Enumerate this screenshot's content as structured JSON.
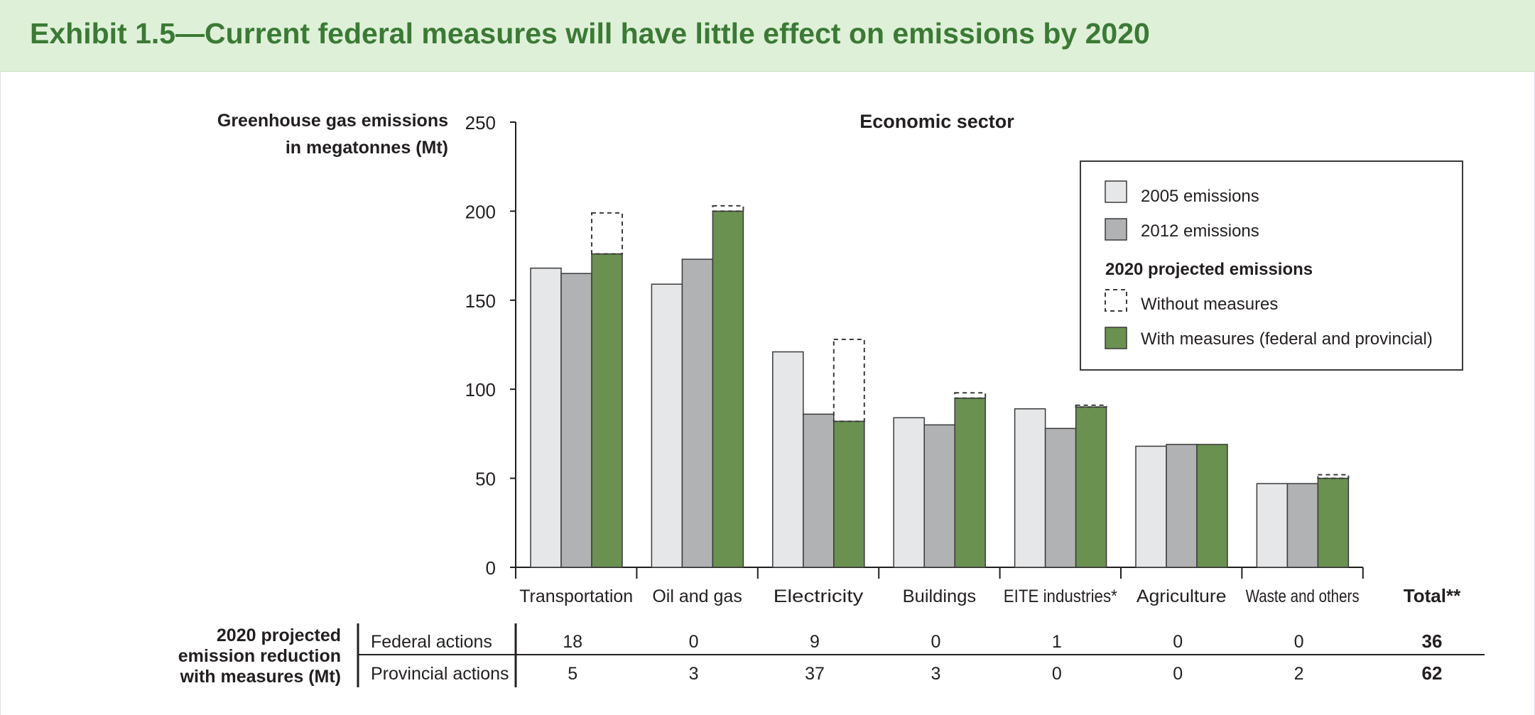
{
  "header": {
    "title": "Exhibit 1.5—Current federal measures will have little effect on emissions by 2020"
  },
  "colors": {
    "c2005": "#e6e7e8",
    "c2012": "#b1b2b4",
    "with": "#6a9150",
    "title": "#3a7a35",
    "header_bg": "#dff0d8"
  },
  "chart_data": {
    "type": "bar",
    "title": "Economic sector",
    "ylabel": [
      "Greenhouse gas emissions",
      "in megatonnes (Mt)"
    ],
    "ylim": [
      0,
      250
    ],
    "yticks": [
      "0",
      "50",
      "100",
      "150",
      "200",
      "250"
    ],
    "grid": false,
    "legend_position": "top-right",
    "categories": [
      "Transportation",
      "Oil and gas",
      "Electricity",
      "Buildings",
      "EITE industries*",
      "Agriculture",
      "Waste and others"
    ],
    "total_label": "Total**",
    "series": [
      {
        "name": "2005 emissions",
        "values": [
          168,
          159,
          121,
          84,
          89,
          68,
          47
        ]
      },
      {
        "name": "2012 emissions",
        "values": [
          165,
          173,
          86,
          80,
          78,
          69,
          47
        ]
      },
      {
        "name": "With measures (federal and provincial)",
        "values": [
          176,
          200,
          82,
          95,
          90,
          69,
          50
        ]
      },
      {
        "name": "Without measures",
        "values": [
          199,
          203,
          128,
          98,
          91,
          69,
          52
        ]
      }
    ],
    "legend": {
      "items": [
        "2005 emissions",
        "2012 emissions"
      ],
      "group_title": "2020 projected emissions",
      "group_items": [
        "Without measures",
        "With measures (federal and provincial)"
      ]
    },
    "table": {
      "row_header": [
        "2020 projected",
        "emission reduction",
        "with measures (Mt)"
      ],
      "rows": [
        {
          "label": "Federal actions",
          "values": [
            "18",
            "0",
            "9",
            "0",
            "1",
            "0",
            "0"
          ],
          "total": "36"
        },
        {
          "label": "Provincial actions",
          "values": [
            "5",
            "3",
            "37",
            "3",
            "0",
            "0",
            "2"
          ],
          "total": "62"
        }
      ]
    }
  }
}
